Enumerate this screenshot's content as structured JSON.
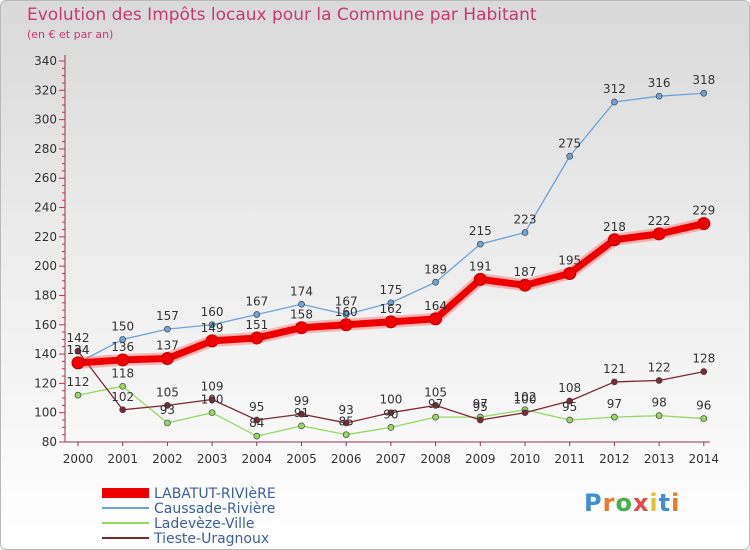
{
  "header": {
    "title": "Evolution des Impôts locaux pour la Commune par Habitant",
    "subtitle": "(en € et par an)"
  },
  "logo": {
    "text": "Proxiti",
    "colors": [
      "#3d8fd6",
      "#e9792b",
      "#46b04a",
      "#e24a4a",
      "#e8c12a"
    ]
  },
  "chart_data": {
    "type": "line",
    "title": "Evolution des Impôts locaux pour la Commune par Habitant",
    "subtitle": "(en € et par an)",
    "xlabel": "",
    "ylabel": "",
    "x": [
      "2000",
      "2001",
      "2002",
      "2003",
      "2004",
      "2005",
      "2006",
      "2007",
      "2008",
      "2009",
      "2010",
      "2011",
      "2012",
      "2013",
      "2014"
    ],
    "ylim": [
      80,
      340
    ],
    "yticks": [
      80,
      100,
      120,
      140,
      160,
      180,
      200,
      220,
      240,
      260,
      280,
      300,
      320,
      340
    ],
    "grid": false,
    "legend_position": "bottom-left",
    "series": [
      {
        "name": "LABATUT-RIVIèRE",
        "color": "#ee0000",
        "emphasis": true,
        "values": [
          134,
          136,
          137,
          149,
          151,
          158,
          160,
          162,
          164,
          191,
          187,
          195,
          218,
          222,
          229
        ]
      },
      {
        "name": "Caussade-Rivière",
        "color": "#6fa3d6",
        "values": [
          134,
          150,
          157,
          160,
          167,
          174,
          167,
          175,
          189,
          215,
          223,
          275,
          312,
          316,
          318
        ]
      },
      {
        "name": "Ladevèze-Ville",
        "color": "#95d862",
        "values": [
          112,
          118,
          93,
          100,
          84,
          91,
          85,
          90,
          97,
          97,
          102,
          95,
          97,
          98,
          96
        ]
      },
      {
        "name": "Tieste-Uragnoux",
        "color": "#7b2a33",
        "values": [
          142,
          102,
          105,
          109,
          95,
          99,
          93,
          100,
          105,
          95,
          100,
          108,
          121,
          122,
          128
        ]
      }
    ]
  }
}
